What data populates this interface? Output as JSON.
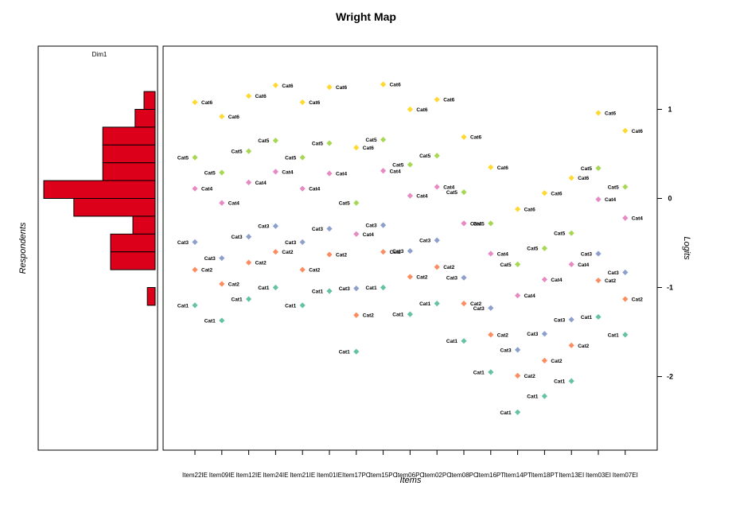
{
  "chart_data": {
    "type": "scatter",
    "title": "Wright Map",
    "xlabel": "Items",
    "ylabel": "Logits",
    "person_panel": {
      "label": "Respondents",
      "dimension": "Dim1",
      "bar_color": "#DD001B",
      "bins": [
        {
          "y_low": 1.0,
          "y_high": 1.2,
          "length": 0.1
        },
        {
          "y_low": 0.8,
          "y_high": 1.0,
          "length": 0.18
        },
        {
          "y_low": 0.6,
          "y_high": 0.8,
          "length": 0.47
        },
        {
          "y_low": 0.4,
          "y_high": 0.6,
          "length": 0.47
        },
        {
          "y_low": 0.2,
          "y_high": 0.4,
          "length": 0.47
        },
        {
          "y_low": 0.0,
          "y_high": 0.2,
          "length": 1.0
        },
        {
          "y_low": -0.2,
          "y_high": 0.0,
          "length": 0.73
        },
        {
          "y_low": -0.4,
          "y_high": -0.2,
          "length": 0.2
        },
        {
          "y_low": -0.6,
          "y_high": -0.4,
          "length": 0.4
        },
        {
          "y_low": -0.8,
          "y_high": -0.6,
          "length": 0.4
        },
        {
          "y_low": -1.2,
          "y_high": -1.0,
          "length": 0.07
        }
      ]
    },
    "ylim": [
      -2.8,
      1.7
    ],
    "yticks": [
      1,
      0,
      -1,
      -2
    ],
    "categories": [
      "Item22IE",
      "Item09IE",
      "Item12IE",
      "Item24IE",
      "Item21IE",
      "Item01IE",
      "Item17PC",
      "Item15PC",
      "Item06PC",
      "Item02PC",
      "Item08PC",
      "Item16PT",
      "Item14PT",
      "Item18PT",
      "Item13EI",
      "Item03EI",
      "Item07EI"
    ],
    "series": [
      {
        "name": "Cat1",
        "color": "#66C2A5",
        "values": [
          -1.2,
          -1.37,
          -1.13,
          -1.0,
          -1.2,
          -1.04,
          -1.72,
          -1.0,
          -1.3,
          -1.18,
          -1.6,
          -1.95,
          -2.4,
          -2.22,
          -2.05,
          -1.33,
          -1.53
        ]
      },
      {
        "name": "Cat2",
        "color": "#FC8D62",
        "values": [
          -0.8,
          -0.96,
          -0.72,
          -0.6,
          -0.8,
          -0.63,
          -1.31,
          -0.6,
          -0.88,
          -0.77,
          -1.18,
          -1.53,
          -1.99,
          -1.82,
          -1.65,
          -0.92,
          -1.13
        ]
      },
      {
        "name": "Cat3",
        "color": "#8DA0CB",
        "values": [
          -0.49,
          -0.67,
          -0.43,
          -0.31,
          -0.49,
          -0.34,
          -1.01,
          -0.3,
          -0.59,
          -0.47,
          -0.89,
          -1.23,
          -1.7,
          -1.52,
          -1.36,
          -0.62,
          -0.83
        ]
      },
      {
        "name": "Cat4",
        "color": "#E78AC3",
        "values": [
          0.11,
          -0.05,
          0.18,
          0.3,
          0.11,
          0.28,
          -0.4,
          0.31,
          0.03,
          0.13,
          -0.28,
          -0.62,
          -1.09,
          -0.91,
          -0.74,
          -0.01,
          -0.22
        ]
      },
      {
        "name": "Cat5",
        "color": "#A6D854",
        "values": [
          0.46,
          0.29,
          0.53,
          0.65,
          0.46,
          0.62,
          -0.05,
          0.66,
          0.38,
          0.48,
          0.07,
          -0.28,
          -0.74,
          -0.56,
          -0.39,
          0.34,
          0.13
        ]
      },
      {
        "name": "Cat6",
        "color": "#FFD92F",
        "values": [
          1.08,
          0.92,
          1.15,
          1.27,
          1.08,
          1.25,
          0.57,
          1.28,
          1.0,
          1.11,
          0.69,
          0.35,
          -0.12,
          0.06,
          0.23,
          0.96,
          0.76
        ]
      }
    ]
  }
}
